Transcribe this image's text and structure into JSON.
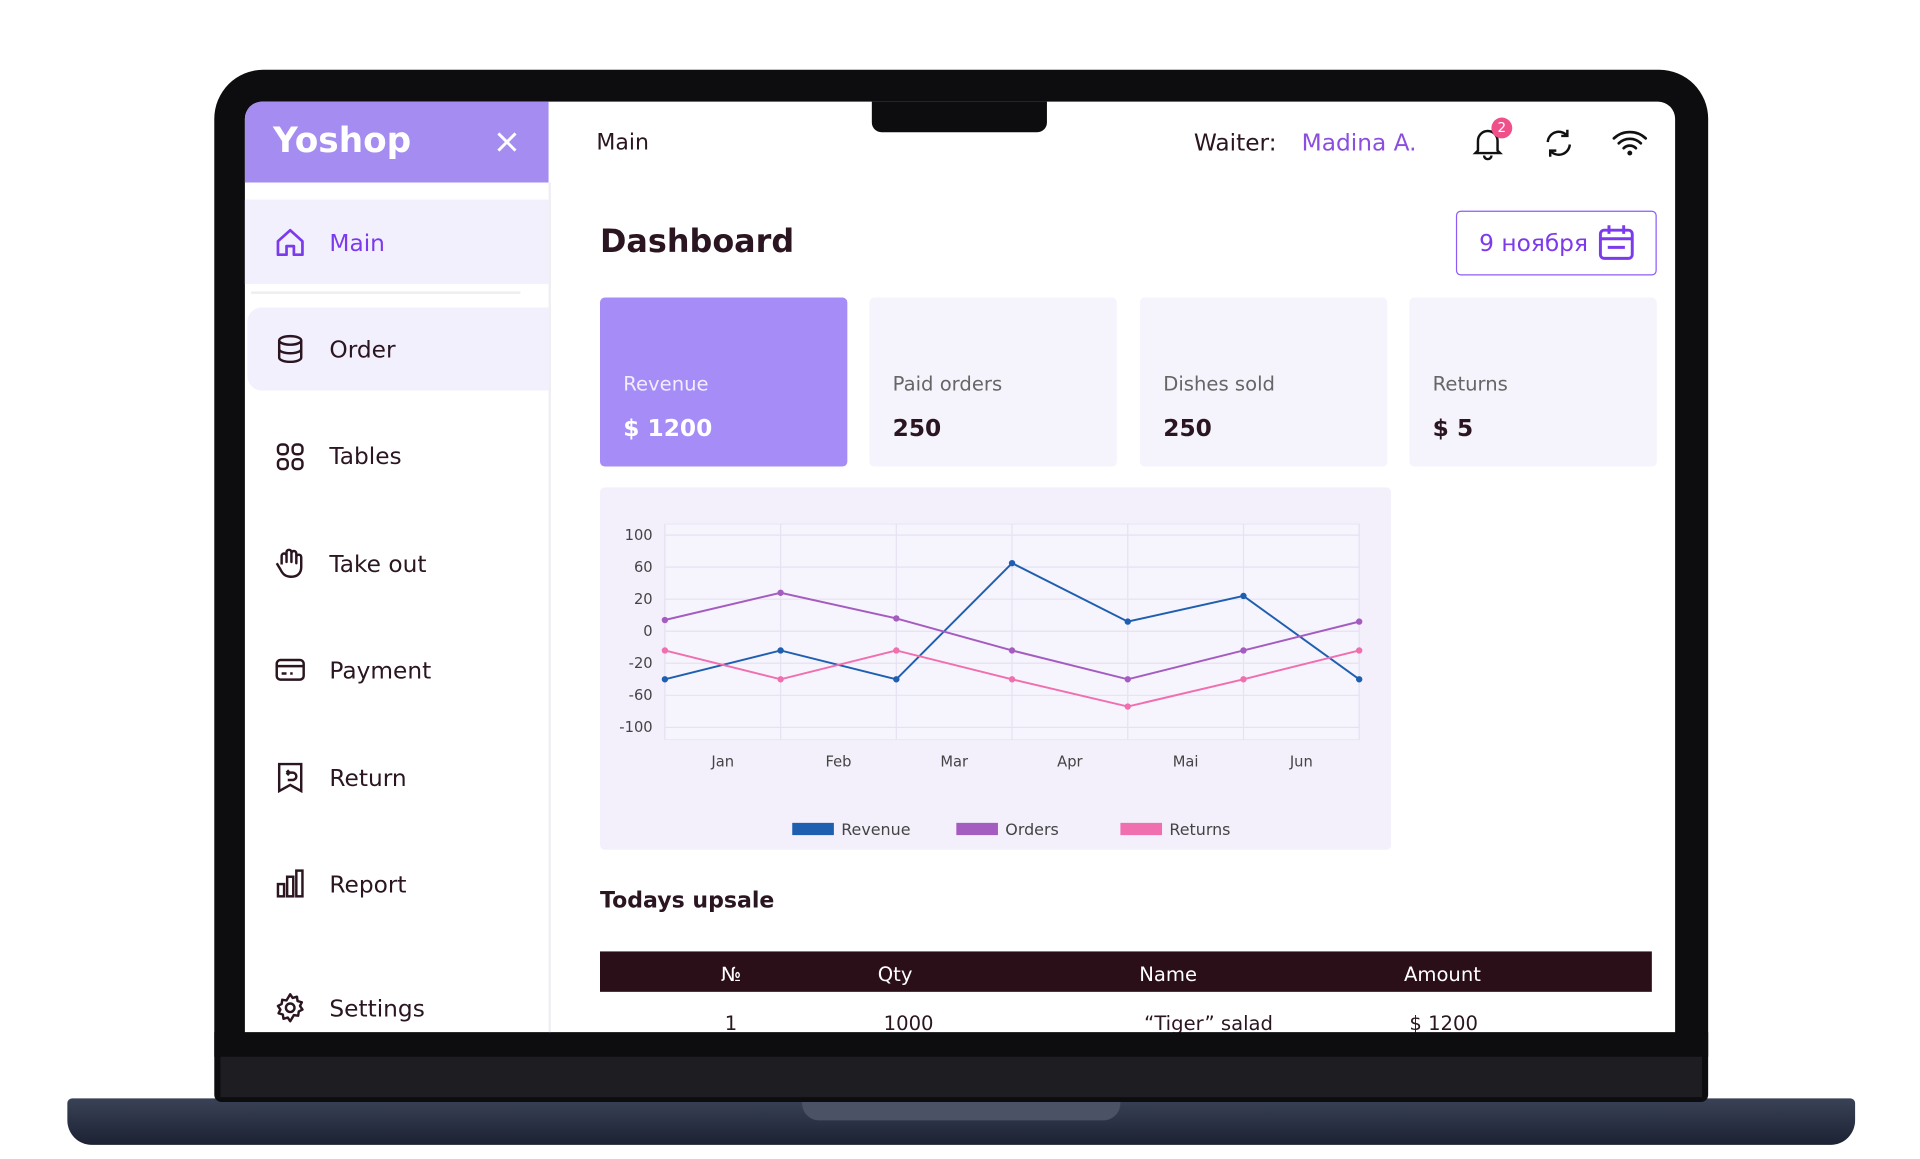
{
  "sidebar": {
    "brand": "Yoshop",
    "menu": [
      "Main",
      "Order",
      "Tables",
      "Take out",
      "Payment",
      "Return",
      "Report",
      "Settings"
    ]
  },
  "topbar": {
    "title": "Main",
    "waiter_label": "Waiter:",
    "waiter_name": "Madina A.",
    "notifications": "2"
  },
  "dashboard": {
    "title": "Dashboard",
    "date": "9 ноября",
    "cards": [
      {
        "label": "Revenue",
        "value": "$ 1200"
      },
      {
        "label": "Paid orders",
        "value": "250"
      },
      {
        "label": "Dishes sold",
        "value": "250"
      },
      {
        "label": "Returns",
        "value": "$ 5"
      }
    ]
  },
  "chart": {
    "type": "line",
    "categories": [
      "Jan",
      "Feb",
      "Mar",
      "Apr",
      "Mai",
      "Jun",
      null
    ],
    "series": [
      {
        "name": "Revenue",
        "color": "#1f5fb0",
        "values": [
          -40,
          -12,
          -40,
          65,
          6,
          24,
          -40
        ]
      },
      {
        "name": "Orders",
        "color": "#a45cc0",
        "values": [
          7,
          28,
          8,
          -12,
          -40,
          -12,
          6
        ]
      },
      {
        "name": "Returns",
        "color": "#f06fae",
        "values": [
          -12,
          -40,
          -12,
          -40,
          -74,
          -40,
          -12
        ]
      }
    ],
    "ylim": [
      -100,
      100
    ],
    "yticks": [
      100,
      60,
      20,
      0,
      -20,
      -60,
      -100
    ],
    "grid": true
  },
  "upsale": {
    "title": "Todays upsale",
    "columns": [
      "№",
      "Qty",
      "Name",
      "Amount"
    ],
    "rows": [
      [
        "1",
        "1000",
        "“Tiger” salad",
        "$ 1200"
      ]
    ]
  }
}
